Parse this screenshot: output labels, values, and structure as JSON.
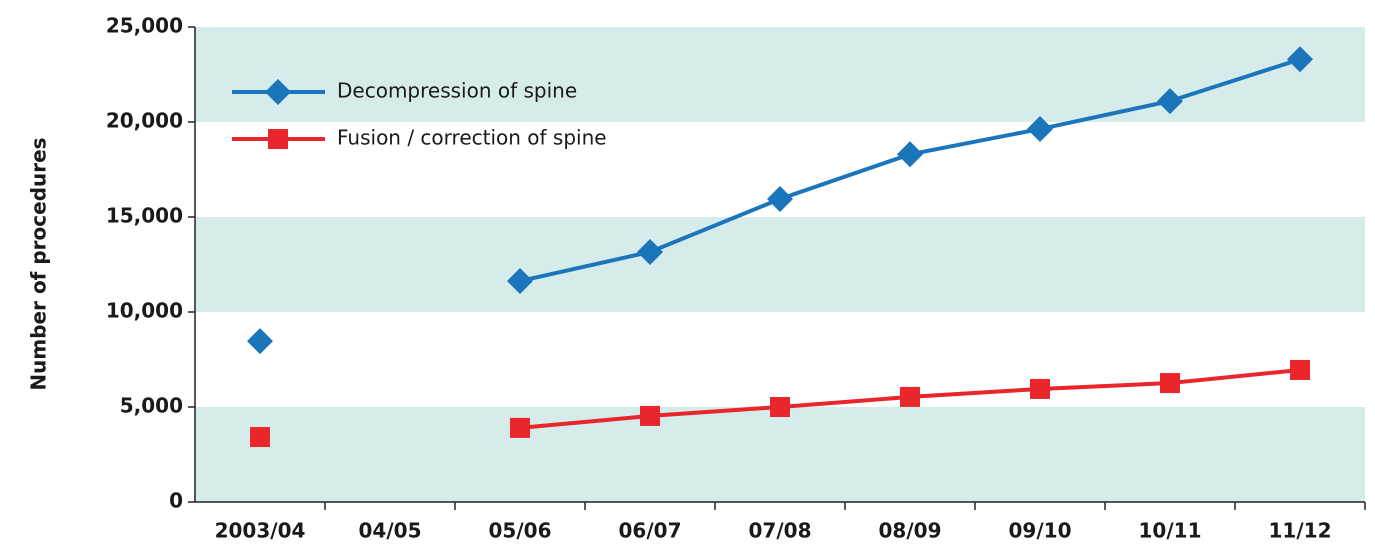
{
  "chart_data": {
    "type": "line",
    "y_label": "Number of procedures",
    "categories": [
      "2003/04",
      "04/05",
      "05/06",
      "06/07",
      "07/08",
      "08/09",
      "09/10",
      "10/11",
      "11/12"
    ],
    "series": [
      {
        "name": "Decompression of spine",
        "color": "#1a75bb",
        "marker": "diamond",
        "values": [
          8470,
          null,
          11630,
          13160,
          15950,
          18300,
          19630,
          21100,
          23300
        ]
      },
      {
        "name": "Fusion / correction of spine",
        "color": "#e8262b",
        "marker": "square",
        "values": [
          3420,
          null,
          3900,
          4530,
          5000,
          5530,
          5950,
          6260,
          6950
        ]
      }
    ],
    "ylim": [
      0,
      25000
    ],
    "yticks": [
      0,
      {
        "value": 5000,
        "label": "5,000"
      },
      {
        "value": 10000,
        "label": "10,000"
      },
      {
        "value": 15000,
        "label": "15,000"
      },
      {
        "value": 20000,
        "label": "20,000"
      },
      {
        "value": 25000,
        "label": "25,000"
      }
    ],
    "band_color": "#d5ecea",
    "legend": "upper left"
  }
}
